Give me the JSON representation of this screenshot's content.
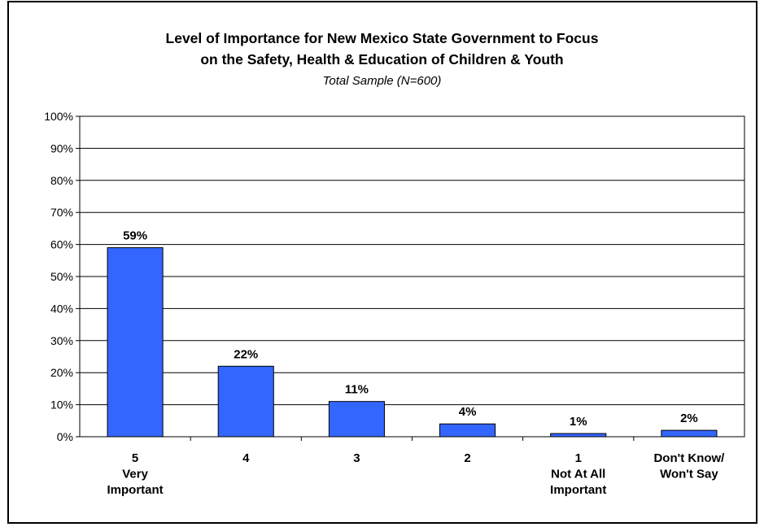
{
  "chart_data": {
    "type": "bar",
    "title_lines": [
      "Level of Importance for New Mexico State Government to Focus",
      "on the Safety, Health & Education of Children & Youth"
    ],
    "subtitle": "Total Sample (N=600)",
    "categories": [
      [
        "5",
        "Very",
        "Important"
      ],
      [
        "4"
      ],
      [
        "3"
      ],
      [
        "2"
      ],
      [
        "1",
        "Not At All",
        "Important"
      ],
      [
        "Don't Know/",
        "Won't Say"
      ]
    ],
    "values": [
      59,
      22,
      11,
      4,
      1,
      2
    ],
    "data_labels": [
      "59%",
      "22%",
      "11%",
      "4%",
      "1%",
      "2%"
    ],
    "y_ticks": [
      "0%",
      "10%",
      "20%",
      "30%",
      "40%",
      "50%",
      "60%",
      "70%",
      "80%",
      "90%",
      "100%"
    ],
    "ylim": [
      0,
      100
    ],
    "grid": true,
    "bar_color": "#3366ff",
    "xlabel": "",
    "ylabel": ""
  }
}
